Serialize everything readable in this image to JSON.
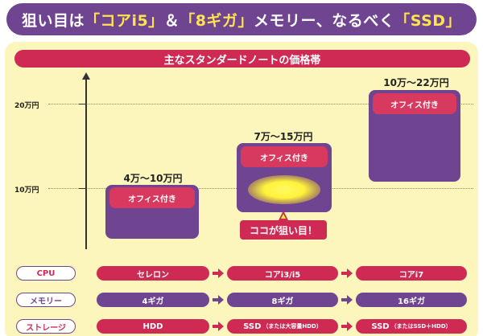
{
  "header": {
    "parts": [
      "狙い目は",
      "「コアi5」",
      "＆",
      "「8ギガ」",
      "メモリー、なるべく",
      "「SSD」"
    ]
  },
  "section_title": "主なスタンダードノートの価格帯",
  "chart_data": {
    "type": "bar",
    "title": "主なスタンダードノートの価格帯",
    "y_ticks": [
      "10万円",
      "20万円"
    ],
    "categories": [
      "4万～10万円",
      "7万～15万円",
      "10万～22万円"
    ],
    "series": [
      {
        "low": 4,
        "high": 10,
        "label": "4万～10万円",
        "tag": "オフィス付き"
      },
      {
        "low": 7,
        "high": 15,
        "label": "7万～15万円",
        "tag": "オフィス付き"
      },
      {
        "low": 10,
        "high": 22,
        "label": "10万～22万円",
        "tag": "オフィス付き"
      }
    ],
    "ylim": [
      0,
      22
    ],
    "units": "万円",
    "highlight": {
      "index": 1,
      "label": "ココが狙い目！"
    },
    "colors": {
      "block": "#6f4491",
      "tag": "#d83a5f",
      "accent": "#cf2a53",
      "glow": "#fff23a",
      "panel": "#fdf6bc"
    }
  },
  "specs": {
    "rows": [
      {
        "label": "CPU",
        "label_color": "#cf2a53",
        "style": "pink",
        "values": [
          {
            "text": "セレロン"
          },
          {
            "text": "コアi3/i5"
          },
          {
            "text": "コアi7"
          }
        ]
      },
      {
        "label": "メモリー",
        "label_color": "#6f4491",
        "style": "purple",
        "values": [
          {
            "text": "4ギガ"
          },
          {
            "text": "8ギガ"
          },
          {
            "text": "16ギガ"
          }
        ]
      },
      {
        "label": "ストレージ",
        "label_color": "#cf2a53",
        "style": "pink",
        "values": [
          {
            "text": "HDD"
          },
          {
            "text": "SSD",
            "sub": "（または大容量HDD）"
          },
          {
            "text": "SSD",
            "sub": "（またはSSD＋HDD）"
          }
        ]
      }
    ]
  }
}
